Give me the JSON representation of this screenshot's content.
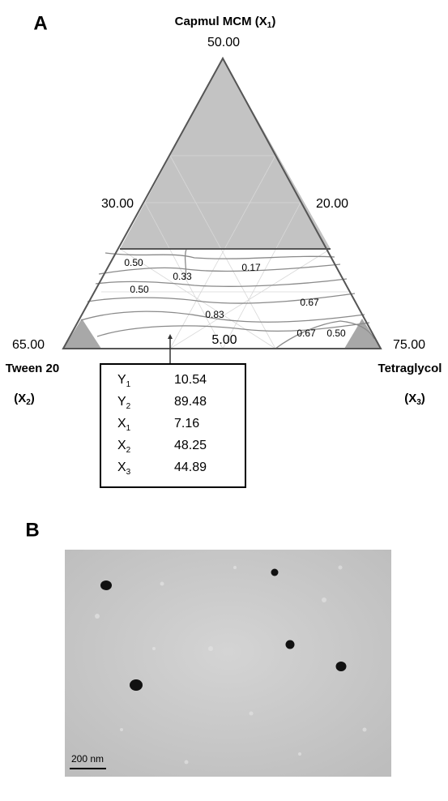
{
  "panel_a": {
    "label": "A",
    "top_vertex": {
      "name": "Capmul MCM (X",
      "sub": "1",
      "close": ")",
      "value": "50.00"
    },
    "left_vertex": {
      "name": "Tween 20",
      "symbol": "(X",
      "sub": "2",
      "close": ")",
      "value": "65.00"
    },
    "right_vertex": {
      "name": "Tetraglycol",
      "symbol": "(X",
      "sub": "3",
      "close": ")",
      "value": "75.00"
    },
    "left_edge_value": "30.00",
    "right_edge_value": "20.00",
    "base_value": "5.00",
    "contour_labels": [
      "0.50",
      "0.33",
      "0.17",
      "0.50",
      "0.67",
      "0.83",
      "0.67",
      "0.50"
    ],
    "table": {
      "rows": [
        {
          "var": "Y",
          "sub": "1",
          "value": 10.54
        },
        {
          "var": "Y",
          "sub": "2",
          "value": 89.48
        },
        {
          "var": "X",
          "sub": "1",
          "value": 7.16
        },
        {
          "var": "X",
          "sub": "2",
          "value": 48.25
        },
        {
          "var": "X",
          "sub": "3",
          "value": 44.89
        }
      ]
    }
  },
  "panel_b": {
    "label": "B",
    "scale_bar": "200 nm"
  }
}
